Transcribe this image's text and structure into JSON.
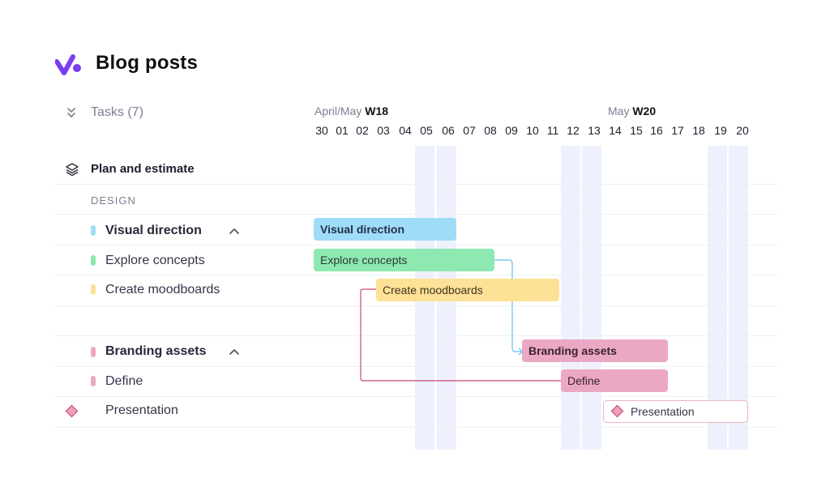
{
  "header": {
    "title": "Blog posts"
  },
  "sidebar": {
    "tasks_label": "Tasks (7)"
  },
  "timeline": {
    "week1": {
      "month": "April/May",
      "week": "W18"
    },
    "week2": {
      "month": "May",
      "week": "W20"
    },
    "days": [
      "30",
      "01",
      "02",
      "03",
      "04",
      "05",
      "06",
      "07",
      "08",
      "09",
      "10",
      "11",
      "12",
      "13",
      "14",
      "15",
      "16",
      "17",
      "18",
      "19",
      "20"
    ]
  },
  "groups": {
    "plan": "Plan and estimate",
    "design": "DESIGN"
  },
  "tasks": {
    "visual": "Visual direction",
    "explore": "Explore concepts",
    "moodboards": "Create moodboards",
    "branding": "Branding assets",
    "define": "Define",
    "presentation": "Presentation"
  },
  "bars": {
    "visual": "Visual direction",
    "explore": "Explore concepts",
    "moodboards": "Create moodboards",
    "branding": "Branding assets",
    "define": "Define",
    "presentation": "Presentation"
  },
  "colors": {
    "visual": "#9fdcf7",
    "explore": "#8de8b1",
    "moodboards": "#fde196",
    "branding": "#eba8c5",
    "accent_logo": "#7a3cf0"
  },
  "icons": [
    "logo-icon",
    "double-chevron-down-icon",
    "layers-icon",
    "chevron-up-icon",
    "diamond-milestone-icon"
  ]
}
